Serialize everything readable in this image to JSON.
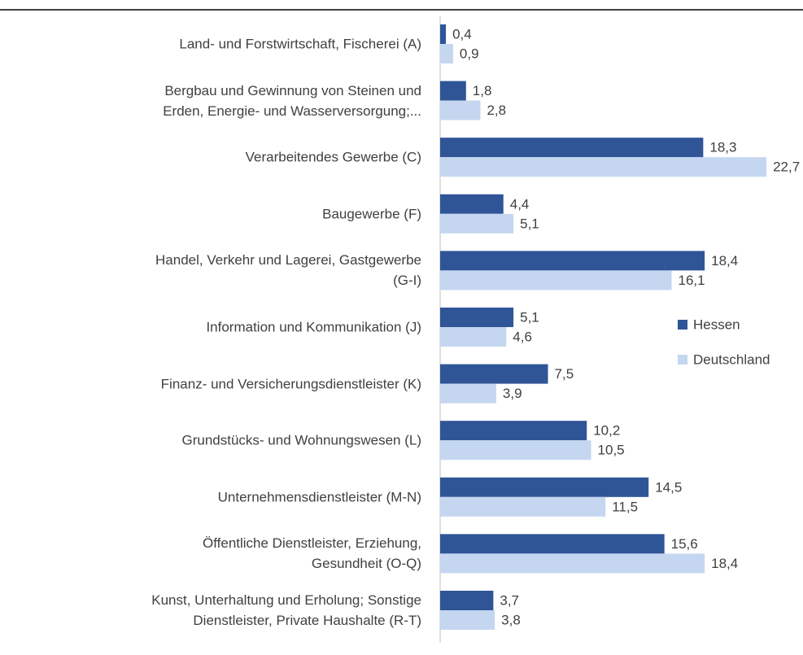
{
  "chart_data": {
    "type": "hbar",
    "categories": [
      "Land- und Forstwirtschaft, Fischerei (A)",
      "Bergbau und Gewinnung von Steinen und\nErden, Energie- und Wasserversorgung;...",
      "Verarbeitendes Gewerbe (C)",
      "Baugewerbe (F)",
      "Handel, Verkehr und Lagerei, Gastgewerbe\n(G-I)",
      "Information und Kommunikation (J)",
      "Finanz- und Versicherungsdienstleister (K)",
      "Grundstücks- und Wohnungswesen (L)",
      "Unternehmensdienstleister (M-N)",
      "Öffentliche Dienstleister, Erziehung,\nGesundheit (O-Q)",
      "Kunst, Unterhaltung und Erholung; Sonstige\nDienstleister, Private Haushalte (R-T)"
    ],
    "series": [
      {
        "name": "Hessen",
        "color": "#2f5597",
        "values": [
          0.4,
          1.8,
          18.3,
          4.4,
          18.4,
          5.1,
          7.5,
          10.2,
          14.5,
          15.6,
          3.7
        ],
        "value_labels": [
          "0,4",
          "1,8",
          "18,3",
          "4,4",
          "18,4",
          "5,1",
          "7,5",
          "10,2",
          "14,5",
          "15,6",
          "3,7"
        ]
      },
      {
        "name": "Deutschland",
        "color": "#c5d6f0",
        "values": [
          0.9,
          2.8,
          22.7,
          5.1,
          16.1,
          4.6,
          3.9,
          10.5,
          11.5,
          18.4,
          3.8
        ],
        "value_labels": [
          "0,9",
          "2,8",
          "22,7",
          "5,1",
          "16,1",
          "4,6",
          "3,9",
          "10,5",
          "11,5",
          "18,4",
          "3,8"
        ]
      }
    ],
    "legend": "right"
  }
}
